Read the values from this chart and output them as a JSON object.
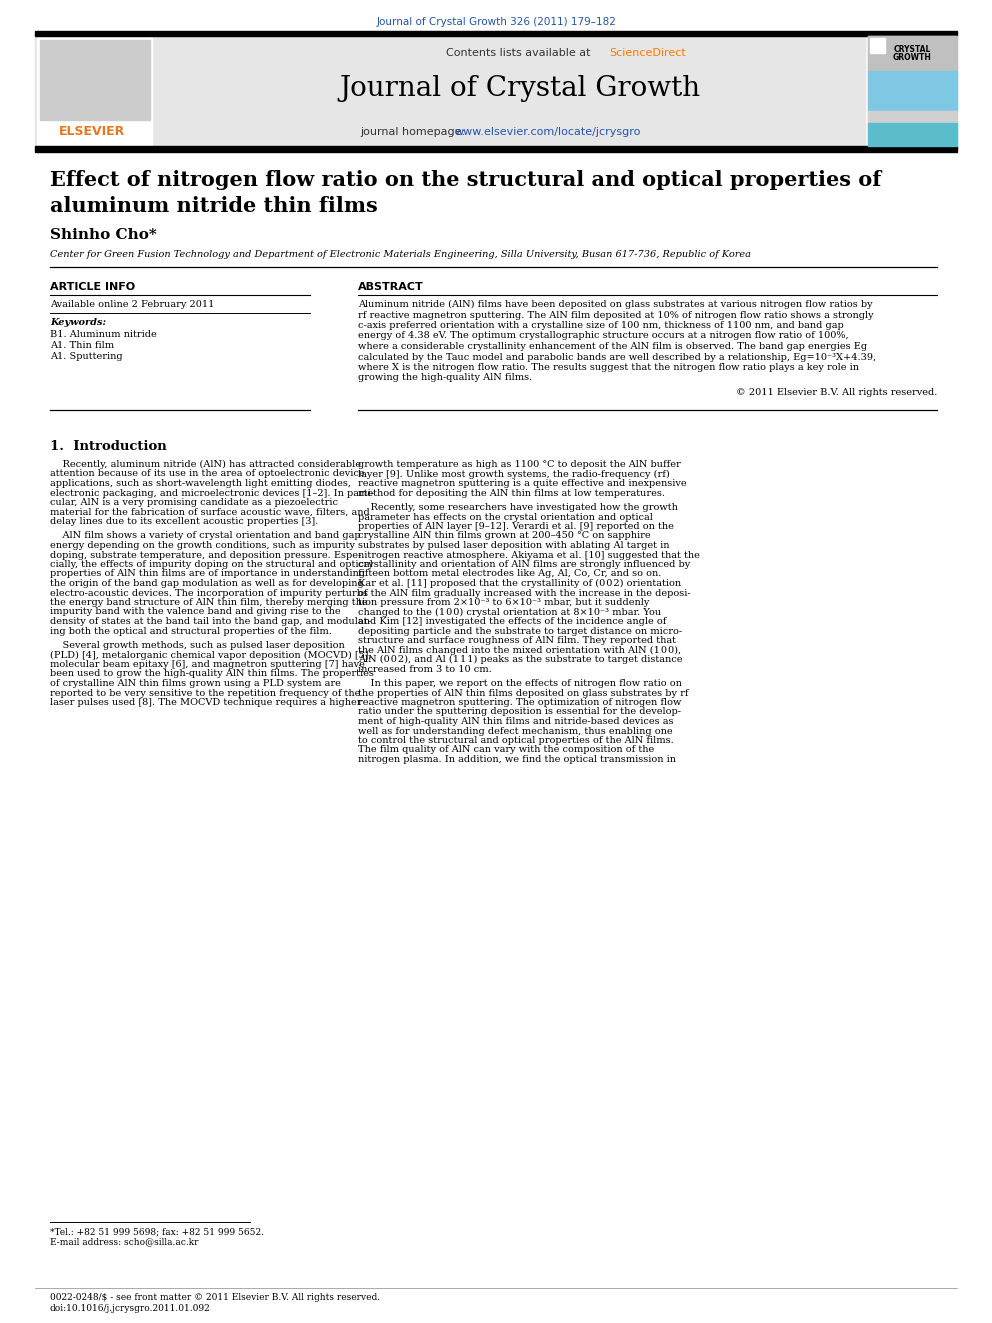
{
  "journal_ref": "Journal of Crystal Growth 326 (2011) 179–182",
  "journal_ref_color": "#2255aa",
  "contents_line1": "Contents lists available at ",
  "contents_link": "ScienceDirect",
  "sciencedirect_color": "#ff7700",
  "journal_name": "Journal of Crystal Growth",
  "homepage_prefix": "journal homepage: ",
  "homepage_url": "www.elsevier.com/locate/jcrysgro",
  "homepage_url_color": "#2255aa",
  "title_line1": "Effect of nitrogen flow ratio on the structural and optical properties of",
  "title_line2": "aluminum nitride thin films",
  "author": "Shinho Cho*",
  "affiliation": "Center for Green Fusion Technology and Department of Electronic Materials Engineering, Silla University, Busan 617-736, Republic of Korea",
  "article_info_header": "ARTICLE INFO",
  "available_online": "Available online 2 February 2011",
  "keywords_header": "Keywords:",
  "keywords": [
    "B1. Aluminum nitride",
    "A1. Thin film",
    "A1. Sputtering"
  ],
  "abstract_header": "ABSTRACT",
  "abstract_lines": [
    "Aluminum nitride (AlN) films have been deposited on glass substrates at various nitrogen flow ratios by",
    "rf reactive magnetron sputtering. The AlN film deposited at 10% of nitrogen flow ratio shows a strongly",
    "c-axis preferred orientation with a crystalline size of 100 nm, thickness of 1100 nm, and band gap",
    "energy of 4.38 eV. The optimum crystallographic structure occurs at a nitrogen flow ratio of 100%,",
    "where a considerable crystallinity enhancement of the AlN film is observed. The band gap energies Eg",
    "calculated by the Tauc model and parabolic bands are well described by a relationship, Eg=10⁻³X+4.39,",
    "where X is the nitrogen flow ratio. The results suggest that the nitrogen flow ratio plays a key role in",
    "growing the high-quality AlN films."
  ],
  "copyright_line": "© 2011 Elsevier B.V. All rights reserved.",
  "section1_header": "1.  Introduction",
  "intro_col1": [
    "    Recently, aluminum nitride (AlN) has attracted considerable",
    "attention because of its use in the area of optoelectronic device",
    "applications, such as short-wavelength light emitting diodes,",
    "electronic packaging, and microelectronic devices [1–2]. In parti-",
    "cular, AlN is a very promising candidate as a piezoelectric",
    "material for the fabrication of surface acoustic wave, filters, and",
    "delay lines due to its excellent acoustic properties [3].",
    "",
    "    AlN film shows a variety of crystal orientation and band gap",
    "energy depending on the growth conditions, such as impurity",
    "doping, substrate temperature, and deposition pressure. Espe-",
    "cially, the effects of impurity doping on the structural and optical",
    "properties of AlN thin films are of importance in understanding",
    "the origin of the band gap modulation as well as for developing",
    "electro-acoustic devices. The incorporation of impurity perturbs",
    "the energy band structure of AlN thin film, thereby merging the",
    "impurity band with the valence band and giving rise to the",
    "density of states at the band tail into the band gap, and modulat-",
    "ing both the optical and structural properties of the film.",
    "",
    "    Several growth methods, such as pulsed laser deposition",
    "(PLD) [4], metalorganic chemical vapor deposition (MOCVD) [5],",
    "molecular beam epitaxy [6], and magnetron sputtering [7] have",
    "been used to grow the high-quality AlN thin films. The properties",
    "of crystalline AlN thin films grown using a PLD system are",
    "reported to be very sensitive to the repetition frequency of the",
    "laser pulses used [8]. The MOCVD technique requires a higher"
  ],
  "intro_col2": [
    "growth temperature as high as 1100 °C to deposit the AlN buffer",
    "layer [9]. Unlike most growth systems, the radio-frequency (rf)",
    "reactive magnetron sputtering is a quite effective and inexpensive",
    "method for depositing the AlN thin films at low temperatures.",
    "",
    "    Recently, some researchers have investigated how the growth",
    "parameter has effects on the crystal orientation and optical",
    "properties of AlN layer [9–12]. Verardi et al. [9] reported on the",
    "crystalline AlN thin films grown at 200–450 °C on sapphire",
    "substrates by pulsed laser deposition with ablating Al target in",
    "nitrogen reactive atmosphere. Akiyama et al. [10] suggested that the",
    "crystallinity and orientation of AlN films are strongly influenced by",
    "fifteen bottom metal electrodes like Ag, Al, Co, Cr, and so on.",
    "Kar et al. [11] proposed that the crystallinity of (0 0 2) orientation",
    "of the AlN film gradually increased with the increase in the deposi-",
    "tion pressure from 2×10⁻³ to 6×10⁻³ mbar, but it suddenly",
    "changed to the (1 0 0) crystal orientation at 8×10⁻³ mbar. You",
    "and Kim [12] investigated the effects of the incidence angle of",
    "depositing particle and the substrate to target distance on micro-",
    "structure and surface roughness of AlN film. They reported that",
    "the AlN films changed into the mixed orientation with AlN (1 0 0),",
    "AlN (0 0 2), and Al (1 1 1) peaks as the substrate to target distance",
    "increased from 3 to 10 cm.",
    "",
    "    In this paper, we report on the effects of nitrogen flow ratio on",
    "the properties of AlN thin films deposited on glass substrates by rf",
    "reactive magnetron sputtering. The optimization of nitrogen flow",
    "ratio under the sputtering deposition is essential for the develop-",
    "ment of high-quality AlN thin films and nitride-based devices as",
    "well as for understanding defect mechanism, thus enabling one",
    "to control the structural and optical properties of the AlN films.",
    "The film quality of AlN can vary with the composition of the",
    "nitrogen plasma. In addition, we find the optical transmission in"
  ],
  "footnote_tel": "*Tel.: +82 51 999 5698; fax: +82 51 999 5652.",
  "footnote_email": "E-mail address: scho@silla.ac.kr",
  "footer_line1": "0022-0248/$ - see front matter © 2011 Elsevier B.V. All rights reserved.",
  "footer_line2": "doi:10.1016/j.jcrysgro.2011.01.092",
  "bg_color": "#ffffff",
  "header_bg": "#e6e6e6",
  "black": "#000000",
  "elsevier_orange": "#e87722",
  "crystal_blue": "#7ec8e3",
  "crystal_teal": "#5bbccc"
}
